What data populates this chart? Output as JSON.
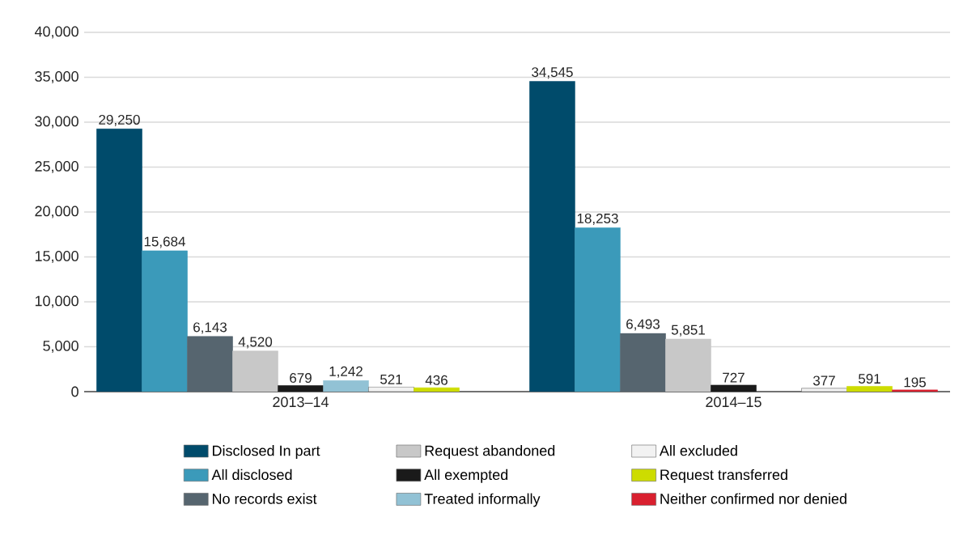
{
  "chart_data": {
    "type": "bar",
    "categories": [
      "2013–14",
      "2014–15"
    ],
    "series": [
      {
        "name": "Disclosed In part",
        "color": "#004b6b",
        "values": [
          29250,
          34545
        ],
        "value_labels": [
          "29,250",
          "34,545"
        ]
      },
      {
        "name": "All disclosed",
        "color": "#3b9aba",
        "values": [
          15684,
          18253
        ],
        "value_labels": [
          "15,684",
          "18,253"
        ]
      },
      {
        "name": "No records exist",
        "color": "#56656f",
        "values": [
          6143,
          6493
        ],
        "value_labels": [
          "6,143",
          "6,493"
        ]
      },
      {
        "name": "Request abandoned",
        "color": "#c8c8c8",
        "values": [
          4520,
          5851
        ],
        "value_labels": [
          "4,520",
          "5,851"
        ]
      },
      {
        "name": "All exempted",
        "color": "#1a1a1a",
        "values": [
          679,
          727
        ],
        "value_labels": [
          "679",
          "727"
        ]
      },
      {
        "name": "Treated informally",
        "color": "#92c2d5",
        "values": [
          1242,
          null
        ],
        "value_labels": [
          "1,242",
          null
        ]
      },
      {
        "name": "All excluded",
        "color": "#f2f2f2",
        "values": [
          521,
          377
        ],
        "value_labels": [
          "521",
          "377"
        ]
      },
      {
        "name": "Request transferred",
        "color": "#cddc00",
        "values": [
          436,
          591
        ],
        "value_labels": [
          "436",
          "591"
        ]
      },
      {
        "name": "Neither confirmed nor denied",
        "color": "#d9202f",
        "values": [
          null,
          195
        ],
        "value_labels": [
          null,
          "195"
        ]
      }
    ],
    "ylim": [
      0,
      40000
    ],
    "yticks": [
      {
        "value": 0,
        "label": "0"
      },
      {
        "value": 5000,
        "label": "5,000"
      },
      {
        "value": 10000,
        "label": "10,000"
      },
      {
        "value": 15000,
        "label": "15,000"
      },
      {
        "value": 20000,
        "label": "20,000"
      },
      {
        "value": 25000,
        "label": "25,000"
      },
      {
        "value": 30000,
        "label": "30,000"
      },
      {
        "value": 35000,
        "label": "35,000"
      },
      {
        "value": 40000,
        "label": "40,000"
      }
    ],
    "grid": "y",
    "legend": "bottom"
  }
}
